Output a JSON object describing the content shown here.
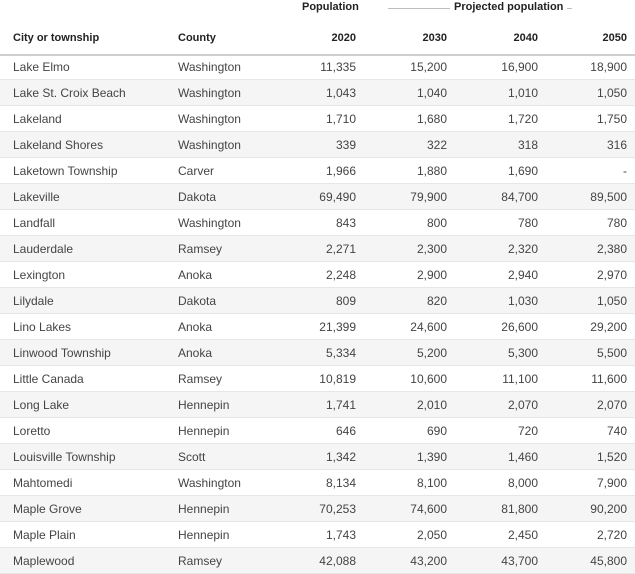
{
  "group_headers": {
    "population": "Population",
    "projected": "Projected population"
  },
  "columns": {
    "city": "City or township",
    "county": "County",
    "y2020": "2020",
    "y2030": "2030",
    "y2040": "2040",
    "y2050": "2050"
  },
  "rows": [
    {
      "city": "Lake Elmo",
      "county": "Washington",
      "y2020": "11,335",
      "y2030": "15,200",
      "y2040": "16,900",
      "y2050": "18,900"
    },
    {
      "city": "Lake St. Croix Beach",
      "county": "Washington",
      "y2020": "1,043",
      "y2030": "1,040",
      "y2040": "1,010",
      "y2050": "1,050"
    },
    {
      "city": "Lakeland",
      "county": "Washington",
      "y2020": "1,710",
      "y2030": "1,680",
      "y2040": "1,720",
      "y2050": "1,750"
    },
    {
      "city": "Lakeland Shores",
      "county": "Washington",
      "y2020": "339",
      "y2030": "322",
      "y2040": "318",
      "y2050": "316"
    },
    {
      "city": "Laketown Township",
      "county": "Carver",
      "y2020": "1,966",
      "y2030": "1,880",
      "y2040": "1,690",
      "y2050": "-"
    },
    {
      "city": "Lakeville",
      "county": "Dakota",
      "y2020": "69,490",
      "y2030": "79,900",
      "y2040": "84,700",
      "y2050": "89,500"
    },
    {
      "city": "Landfall",
      "county": "Washington",
      "y2020": "843",
      "y2030": "800",
      "y2040": "780",
      "y2050": "780"
    },
    {
      "city": "Lauderdale",
      "county": "Ramsey",
      "y2020": "2,271",
      "y2030": "2,300",
      "y2040": "2,320",
      "y2050": "2,380"
    },
    {
      "city": "Lexington",
      "county": "Anoka",
      "y2020": "2,248",
      "y2030": "2,900",
      "y2040": "2,940",
      "y2050": "2,970"
    },
    {
      "city": "Lilydale",
      "county": "Dakota",
      "y2020": "809",
      "y2030": "820",
      "y2040": "1,030",
      "y2050": "1,050"
    },
    {
      "city": "Lino Lakes",
      "county": "Anoka",
      "y2020": "21,399",
      "y2030": "24,600",
      "y2040": "26,600",
      "y2050": "29,200"
    },
    {
      "city": "Linwood Township",
      "county": "Anoka",
      "y2020": "5,334",
      "y2030": "5,200",
      "y2040": "5,300",
      "y2050": "5,500"
    },
    {
      "city": "Little Canada",
      "county": "Ramsey",
      "y2020": "10,819",
      "y2030": "10,600",
      "y2040": "11,100",
      "y2050": "11,600"
    },
    {
      "city": "Long Lake",
      "county": "Hennepin",
      "y2020": "1,741",
      "y2030": "2,010",
      "y2040": "2,070",
      "y2050": "2,070"
    },
    {
      "city": "Loretto",
      "county": "Hennepin",
      "y2020": "646",
      "y2030": "690",
      "y2040": "720",
      "y2050": "740"
    },
    {
      "city": "Louisville Township",
      "county": "Scott",
      "y2020": "1,342",
      "y2030": "1,390",
      "y2040": "1,460",
      "y2050": "1,520"
    },
    {
      "city": "Mahtomedi",
      "county": "Washington",
      "y2020": "8,134",
      "y2030": "8,100",
      "y2040": "8,000",
      "y2050": "7,900"
    },
    {
      "city": "Maple Grove",
      "county": "Hennepin",
      "y2020": "70,253",
      "y2030": "74,600",
      "y2040": "81,800",
      "y2050": "90,200"
    },
    {
      "city": "Maple Plain",
      "county": "Hennepin",
      "y2020": "1,743",
      "y2030": "2,050",
      "y2040": "2,450",
      "y2050": "2,720"
    },
    {
      "city": "Maplewood",
      "county": "Ramsey",
      "y2020": "42,088",
      "y2030": "43,200",
      "y2040": "43,700",
      "y2050": "45,800"
    }
  ]
}
